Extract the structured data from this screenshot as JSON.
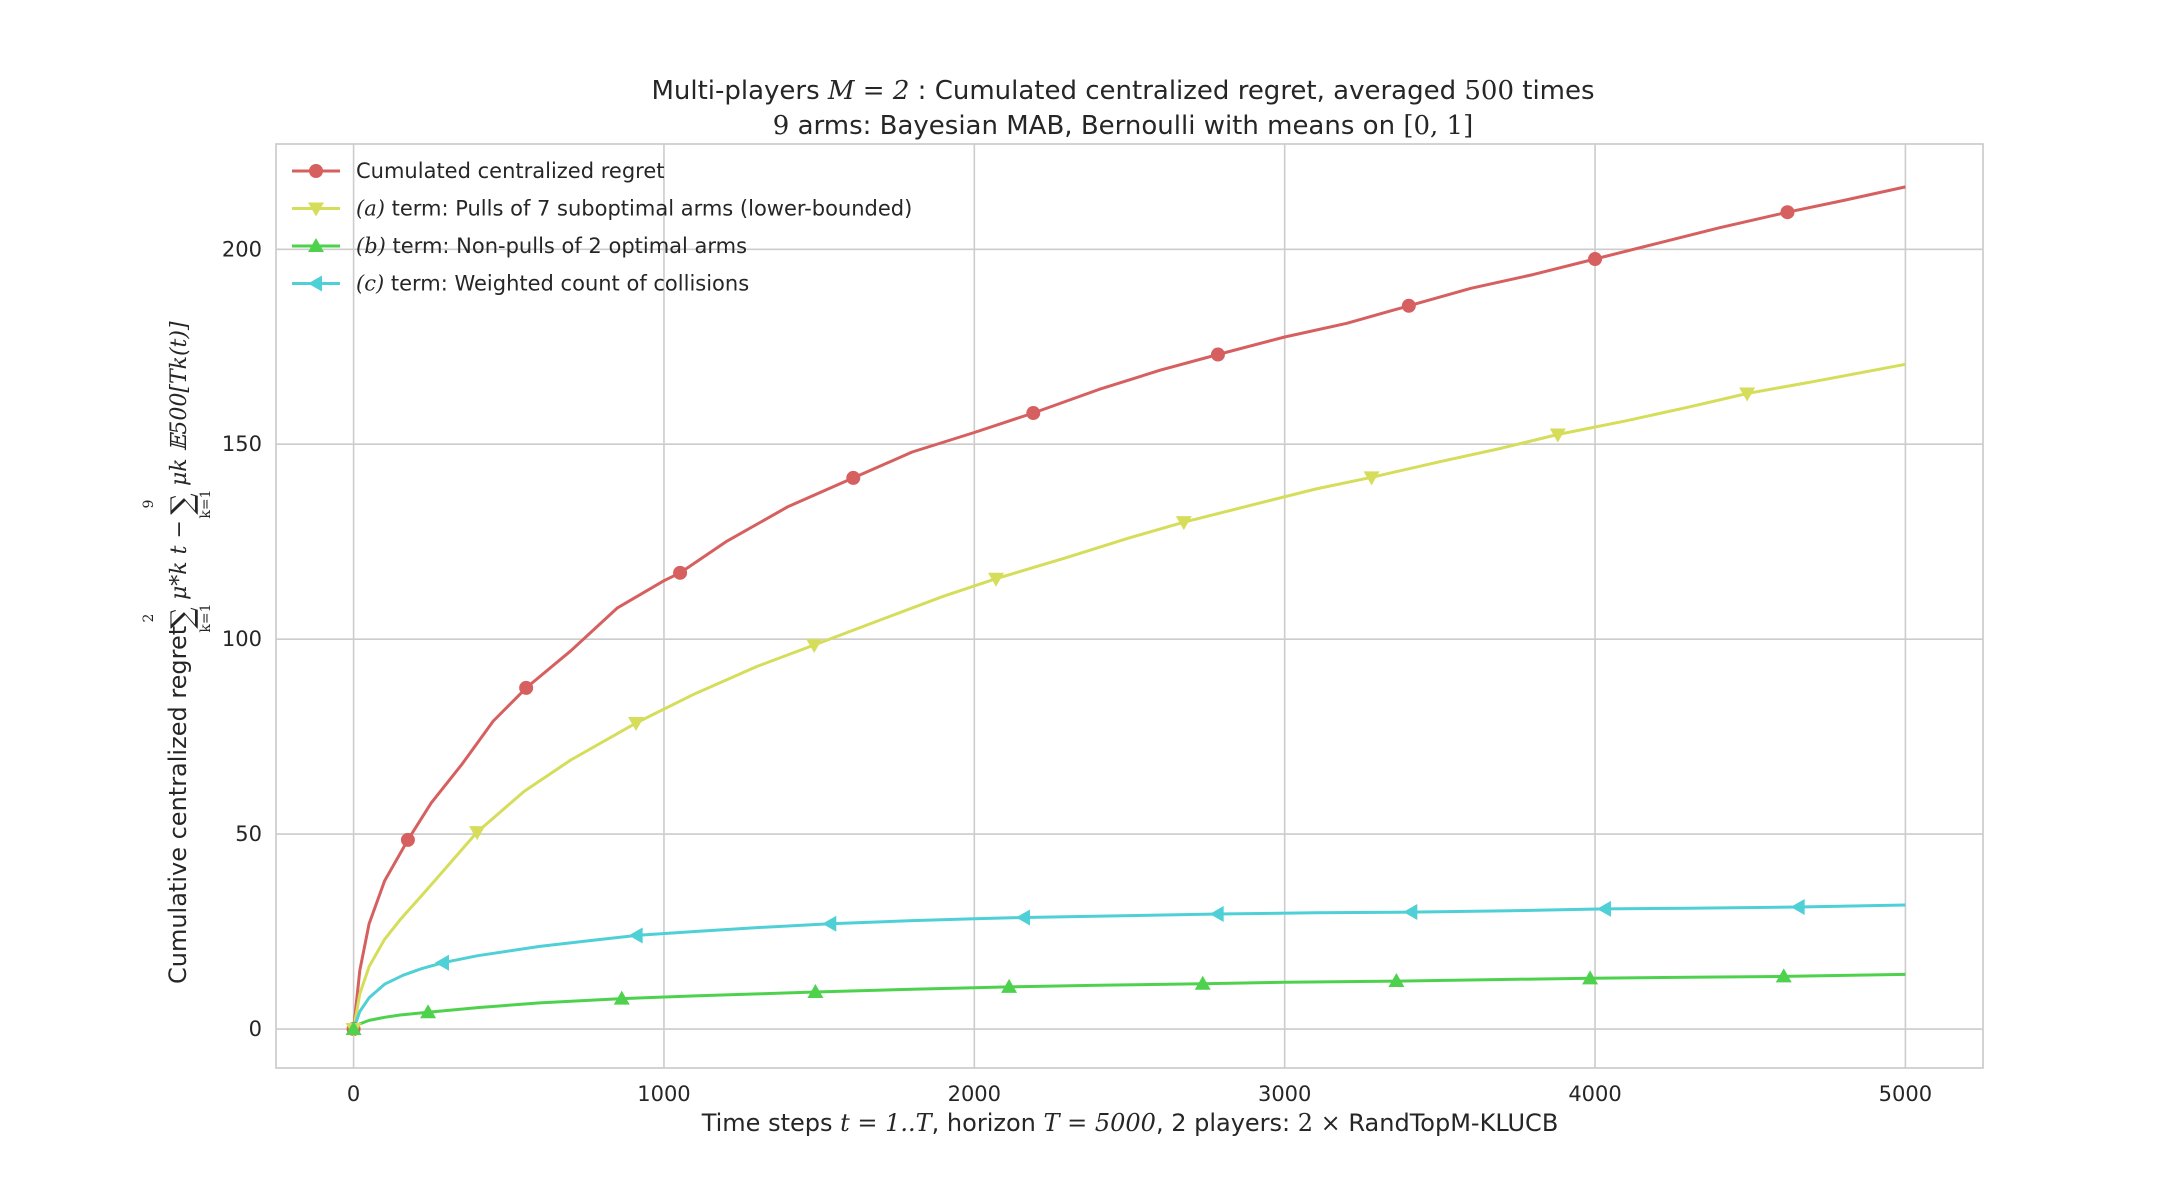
{
  "chart_data": {
    "type": "line",
    "title": {
      "line1": {
        "pre": "Multi-players ",
        "math1": "M = 2",
        "mid": " : Cumulated centralized regret, averaged ",
        "math2": "500",
        "post": " times"
      },
      "line2": {
        "math1": "9",
        "mid": " arms: Bayesian MAB, Bernoulli with means on ",
        "math2": "[0, 1]"
      }
    },
    "xlabel": {
      "pre": "Time steps ",
      "math1": "t = 1..T",
      "mid": ", horizon ",
      "math2": "T = 5000",
      "mid2": ", 2 players: ",
      "math3": "2 ×",
      "post": "  RandTopM-KLUCB"
    },
    "ylabel": {
      "text": "Cumulative centralized regret",
      "math_sum1_top": "2",
      "math_sum1_bottom": "k=1",
      "math_term1": "μ*k t −",
      "math_sum2_top": "9",
      "math_sum2_bottom": "k=1",
      "math_term2": "μk 𝔼500[Tk(t)]"
    },
    "xlim": [
      -250,
      5250
    ],
    "ylim": [
      -10,
      227
    ],
    "xticks": [
      0,
      1000,
      2000,
      3000,
      4000,
      5000
    ],
    "yticks": [
      0,
      50,
      100,
      150,
      200
    ],
    "grid": true,
    "legend_position": "top-left",
    "series": [
      {
        "name_math": "",
        "name": "Cumulated centralized regret",
        "color": "#d65f5f",
        "marker": "circle",
        "x": [
          0,
          20,
          50,
          100,
          175,
          250,
          350,
          450,
          556,
          700,
          850,
          1000,
          1052,
          1200,
          1400,
          1600,
          1800,
          2000,
          2190,
          2400,
          2600,
          2785,
          3000,
          3200,
          3400,
          3600,
          3800,
          4000,
          4200,
          4400,
          4620,
          4800,
          5000
        ],
        "y": [
          0,
          15,
          27,
          38,
          48.5,
          58,
          68,
          79,
          87.5,
          97,
          108,
          115,
          117,
          125,
          134,
          141,
          148,
          153,
          158,
          164,
          169,
          173,
          177.5,
          181,
          185.5,
          190,
          193.5,
          197.5,
          201.5,
          205.5,
          209.5,
          212.5,
          216
        ]
      },
      {
        "name_math": "(a)",
        "name": " term: Pulls of 7 suboptimal arms (lower-bounded)",
        "color": "#d5dd5a",
        "marker": "triangle-down",
        "x": [
          0,
          20,
          50,
          100,
          150,
          250,
          398,
          550,
          700,
          910,
          1100,
          1300,
          1484,
          1700,
          1900,
          2070,
          2300,
          2500,
          2675,
          2900,
          3100,
          3280,
          3500,
          3700,
          3880,
          4100,
          4300,
          4490,
          4700,
          5000
        ],
        "y": [
          0,
          9,
          16,
          23,
          28,
          37,
          50.5,
          61,
          69,
          78.5,
          86,
          93,
          98.5,
          105,
          111,
          115.5,
          121,
          126,
          130,
          134.5,
          138.5,
          141.5,
          145.5,
          149,
          152.5,
          156,
          159.5,
          163,
          166,
          170.5
        ]
      },
      {
        "name_math": "(b)",
        "name": " term: Non-pulls of 2 optimal arms",
        "color": "#4ed24e",
        "marker": "triangle-up",
        "x": [
          0,
          20,
          50,
          100,
          150,
          240,
          400,
          600,
          864,
          1100,
          1300,
          1488,
          1800,
          2112,
          2400,
          2736,
          3000,
          3360,
          3700,
          3984,
          4300,
          4608,
          5000
        ],
        "y": [
          0,
          1.3,
          2.2,
          3,
          3.6,
          4.3,
          5.5,
          6.7,
          7.8,
          8.5,
          9,
          9.5,
          10.2,
          10.8,
          11.2,
          11.6,
          12,
          12.3,
          12.7,
          13,
          13.3,
          13.5,
          14
        ]
      },
      {
        "name_math": "(c)",
        "name": " term: Weighted count of collisions",
        "color": "#4fd0d6",
        "marker": "triangle-left",
        "x": [
          0,
          20,
          50,
          100,
          160,
          220,
          288,
          400,
          600,
          800,
          912,
          1100,
          1300,
          1536,
          1800,
          2000,
          2160,
          2500,
          2784,
          3100,
          3408,
          3700,
          4032,
          4300,
          4656,
          5000
        ],
        "y": [
          0,
          4.5,
          8,
          11.5,
          13.8,
          15.5,
          17,
          18.8,
          21.2,
          23,
          24,
          25,
          26,
          27,
          27.8,
          28.3,
          28.6,
          29.1,
          29.5,
          29.8,
          30,
          30.3,
          30.8,
          31,
          31.3,
          31.8
        ]
      }
    ],
    "markers_at": [
      [
        0,
        175,
        556,
        1052,
        1610,
        2190,
        2785,
        3400,
        4000,
        4620
      ],
      [
        0,
        398,
        910,
        1484,
        2070,
        2675,
        3280,
        3880,
        4490
      ],
      [
        0,
        240,
        864,
        1488,
        2112,
        2736,
        3360,
        3984,
        4608
      ],
      [
        288,
        912,
        1536,
        2160,
        2784,
        3408,
        4032,
        4656
      ]
    ]
  }
}
